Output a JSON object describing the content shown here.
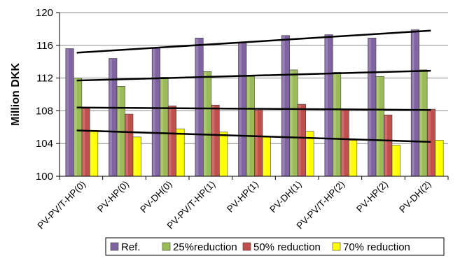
{
  "chart_data": {
    "type": "bar",
    "title": "",
    "xlabel": "",
    "ylabel": "Million DKK",
    "ylim": [
      100,
      120
    ],
    "yticks": [
      100,
      104,
      108,
      112,
      116,
      120
    ],
    "categories": [
      "PV-PV/T-HP(0)",
      "PV-HP(0)",
      "PV-DH(0)",
      "PV-PV/T-HP(1)",
      "PV-HP(1)",
      "PV-DH(1)",
      "PV-PV/T-HP(2)",
      "PV-HP(2)",
      "PV-DH(2)"
    ],
    "series": [
      {
        "name": "Ref.",
        "color": "#8064a2",
        "values": [
          115.6,
          114.4,
          115.7,
          116.9,
          116.3,
          117.2,
          117.3,
          116.9,
          117.9
        ]
      },
      {
        "name": "25%reduction",
        "color": "#9bbb59",
        "values": [
          112.0,
          111.0,
          112.1,
          112.8,
          112.2,
          113.0,
          112.7,
          112.2,
          113.0
        ]
      },
      {
        "name": "50% reduction",
        "color": "#c0504d",
        "values": [
          108.3,
          107.6,
          108.6,
          108.7,
          108.1,
          108.8,
          108.1,
          107.5,
          108.2
        ]
      },
      {
        "name": "70% reduction",
        "color": "#ffff00",
        "values": [
          105.6,
          104.8,
          105.8,
          105.4,
          104.8,
          105.5,
          104.4,
          103.8,
          104.4
        ]
      }
    ],
    "trendlines": [
      {
        "series": "Ref.",
        "start": 115.1,
        "end": 117.8
      },
      {
        "series": "25%reduction",
        "start": 111.7,
        "end": 112.9
      },
      {
        "series": "50% reduction",
        "start": 108.4,
        "end": 108.1
      },
      {
        "series": "70% reduction",
        "start": 105.6,
        "end": 104.2
      }
    ],
    "grid": true,
    "legend": "bottom"
  }
}
